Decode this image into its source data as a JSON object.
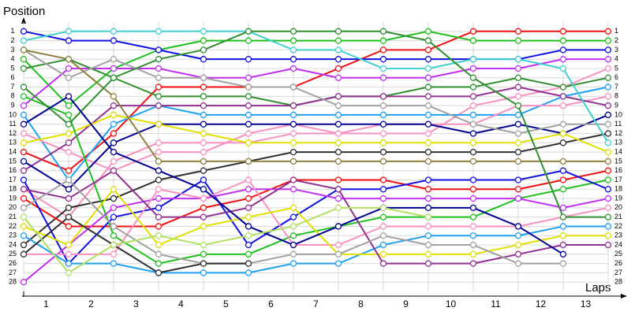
{
  "chart_data": {
    "type": "line",
    "y_label": "Position",
    "x_label": "Laps",
    "x": [
      0,
      1,
      2,
      3,
      4,
      5,
      6,
      7,
      8,
      9,
      10,
      11,
      12,
      13
    ],
    "xlim": [
      0,
      13
    ],
    "xticks": [
      {
        "value": 0.5,
        "label": "1"
      },
      {
        "value": 1.5,
        "label": "2"
      },
      {
        "value": 2.5,
        "label": "3"
      },
      {
        "value": 3.5,
        "label": "4"
      },
      {
        "value": 4.5,
        "label": "5"
      },
      {
        "value": 5.5,
        "label": "6"
      },
      {
        "value": 6.5,
        "label": "7"
      },
      {
        "value": 7.5,
        "label": "8"
      },
      {
        "value": 8.5,
        "label": "9"
      },
      {
        "value": 9.5,
        "label": "10"
      },
      {
        "value": 10.5,
        "label": "11"
      },
      {
        "value": 11.5,
        "label": "12"
      },
      {
        "value": 12.5,
        "label": "13"
      }
    ],
    "ylim": [
      29,
      0
    ],
    "yticks": [
      1,
      2,
      3,
      4,
      5,
      6,
      7,
      8,
      9,
      10,
      11,
      12,
      13,
      14,
      15,
      16,
      17,
      18,
      19,
      20,
      21,
      22,
      23,
      24,
      25,
      26,
      27,
      28
    ],
    "y2lim": [
      29,
      0
    ],
    "y2ticks": [
      1,
      2,
      3,
      4,
      5,
      6,
      7,
      8,
      9,
      10,
      11,
      12,
      13,
      14,
      15,
      16,
      17,
      18,
      19,
      20,
      21,
      22,
      23,
      24,
      25,
      26,
      27,
      28
    ],
    "grid": true,
    "series": [
      {
        "color": "#f01010",
        "values": [
          14,
          16,
          12,
          7,
          7,
          7,
          7,
          5,
          3,
          3,
          1,
          1,
          1,
          1
        ]
      },
      {
        "color": "#20c020",
        "values": [
          4,
          9,
          5,
          3,
          2,
          2,
          2,
          2,
          2,
          1,
          2,
          2,
          2,
          2
        ]
      },
      {
        "color": "#1010e0",
        "values": [
          1,
          2,
          2,
          3,
          4,
          4,
          4,
          4,
          4,
          4,
          4,
          4,
          3,
          3
        ]
      },
      {
        "color": "#c030f0",
        "values": [
          9,
          5,
          5,
          5,
          6,
          6,
          5,
          6,
          6,
          6,
          5,
          5,
          4,
          4
        ]
      },
      {
        "color": "#f890c0",
        "values": [
          18,
          21,
          15,
          13,
          13,
          13,
          12,
          12,
          12,
          12,
          9,
          8,
          7,
          5
        ]
      },
      {
        "color": "#309030",
        "values": [
          5,
          4,
          6,
          8,
          8,
          8,
          9,
          8,
          8,
          7,
          7,
          6,
          7,
          6
        ]
      },
      {
        "color": "#20a0f0",
        "values": [
          10,
          17,
          11,
          9,
          10,
          10,
          10,
          10,
          10,
          10,
          10,
          10,
          8,
          7
        ]
      },
      {
        "color": "#f890c0",
        "values": [
          12,
          14,
          16,
          14,
          14,
          12,
          11,
          12,
          11,
          11,
          11,
          9,
          9,
          8
        ]
      },
      {
        "color": "#903090",
        "values": [
          16,
          13,
          9,
          9,
          9,
          9,
          9,
          8,
          8,
          8,
          8,
          7,
          8,
          9
        ]
      },
      {
        "color": "#000090",
        "values": [
          15,
          18,
          13,
          11,
          11,
          11,
          11,
          11,
          11,
          11,
          12,
          11,
          12,
          10
        ]
      },
      {
        "color": "#a0a0a0",
        "values": [
          3,
          6,
          4,
          6,
          6,
          7,
          7,
          9,
          9,
          9,
          11,
          12,
          11,
          11
        ]
      },
      {
        "color": "#303030",
        "values": [
          24,
          20,
          19,
          17,
          16,
          15,
          14,
          14,
          14,
          14,
          14,
          14,
          13,
          12
        ]
      },
      {
        "color": "#40d0d0",
        "values": [
          2,
          1,
          1,
          1,
          1,
          1,
          3,
          3,
          5,
          5,
          4,
          4,
          5,
          13
        ]
      },
      {
        "color": "#e0e000",
        "values": [
          13,
          12,
          10,
          11,
          12,
          13,
          13,
          13,
          13,
          13,
          13,
          13,
          12,
          14
        ]
      },
      {
        "color": "#908040",
        "values": [
          3,
          4,
          8,
          15,
          15,
          15,
          15,
          15,
          15,
          15,
          15,
          15,
          15,
          15
        ]
      },
      {
        "color": "#f01010",
        "values": [
          19,
          22,
          22,
          22,
          20,
          19,
          17,
          17,
          17,
          18,
          18,
          18,
          17,
          16
        ]
      },
      {
        "color": "#20c020",
        "values": [
          8,
          10,
          23,
          26,
          25,
          25,
          23,
          22,
          21,
          21,
          21,
          19,
          18,
          17
        ]
      },
      {
        "color": "#1010e0",
        "values": [
          17,
          26,
          21,
          20,
          17,
          24,
          21,
          18,
          18,
          17,
          17,
          17,
          16,
          18
        ]
      },
      {
        "color": "#c030f0",
        "values": [
          28,
          24,
          20,
          19,
          19,
          18,
          18,
          19,
          19,
          19,
          19,
          19,
          20,
          19
        ]
      },
      {
        "color": "#f890c0",
        "values": [
          25,
          25,
          25,
          18,
          19,
          17,
          24,
          24,
          22,
          22,
          22,
          22,
          21,
          20
        ]
      },
      {
        "color": "#309030",
        "values": [
          7,
          11,
          6,
          4,
          3,
          1,
          1,
          1,
          1,
          2,
          6,
          9,
          21,
          21
        ]
      },
      {
        "color": "#20a0f0",
        "values": [
          23,
          26,
          26,
          27,
          27,
          27,
          26,
          26,
          24,
          23,
          23,
          23,
          22,
          22
        ]
      },
      {
        "color": "#e0e000",
        "values": [
          22,
          24,
          18,
          24,
          22,
          21,
          20,
          25,
          25,
          25,
          25,
          24,
          23,
          23
        ]
      },
      {
        "color": "#903090",
        "values": [
          18,
          19,
          16,
          21,
          21,
          20,
          17,
          18,
          26,
          26,
          26,
          25,
          24,
          24
        ]
      },
      {
        "color": "#000090",
        "values": [
          11,
          8,
          14,
          16,
          18,
          22,
          24,
          22,
          20,
          20,
          20,
          22,
          25,
          null
        ]
      },
      {
        "color": "#a0a0a0",
        "values": [
          20,
          17,
          22,
          25,
          26,
          26,
          25,
          25,
          23,
          24,
          24,
          26,
          26,
          null
        ]
      },
      {
        "color": "#303030",
        "values": [
          25,
          21,
          24,
          27,
          26,
          26,
          null,
          null,
          null,
          null,
          null,
          null,
          null,
          null
        ]
      },
      {
        "color": "#b0e060",
        "values": [
          21,
          27,
          24,
          23,
          24,
          23,
          22,
          20,
          20,
          21,
          null,
          null,
          null,
          null
        ]
      }
    ]
  }
}
